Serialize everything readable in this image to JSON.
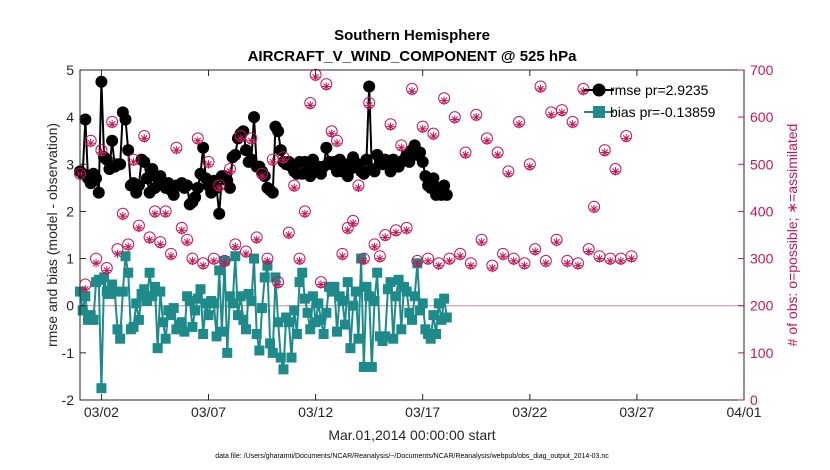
{
  "chart_data": {
    "type": "line",
    "title": "Southern Hemisphere",
    "subtitle": "AIRCRAFT_V_WIND_COMPONENT @ 525 hPa",
    "xlabel": "Mar.01,2014 00:00:00 start",
    "ylabel": "rmse and bias (model - observation)",
    "ylabel_right": "# of obs: o=possible; ∗=assimilated",
    "footnote": "data file: /Users/gharamti/Documents/NCAR/Reanalysis/~/Documents/NCAR/Reanalysis/webpub/obs_diag_output_2014-03.nc",
    "xlim": [
      1,
      32
    ],
    "ylim": [
      -2,
      5
    ],
    "ylim_right": [
      0,
      700
    ],
    "x_ticks": [
      {
        "x": 2,
        "label": "03/02"
      },
      {
        "x": 7,
        "label": "03/07"
      },
      {
        "x": 12,
        "label": "03/12"
      },
      {
        "x": 17,
        "label": "03/17"
      },
      {
        "x": 22,
        "label": "03/22"
      },
      {
        "x": 27,
        "label": "03/27"
      },
      {
        "x": 32,
        "label": "04/01"
      }
    ],
    "y_ticks": [
      "-2",
      "-1",
      "0",
      "1",
      "2",
      "3",
      "4",
      "5"
    ],
    "y_ticks_right": [
      "0",
      "100",
      "200",
      "300",
      "400",
      "500",
      "600",
      "700"
    ],
    "legend": {
      "position": "top-right",
      "entries": [
        "rmse pr=2.9235",
        "bias pr=-0.13859"
      ]
    },
    "colors": {
      "rmse": "#000000",
      "bias": "#1f8a8a",
      "obs": "#c2185b",
      "zero": "#d9a0a0"
    },
    "series": [
      {
        "name": "rmse pr=2.9235",
        "axis": "left",
        "x_start": 1,
        "x_step": 0.125,
        "values": [
          2.85,
          2.8,
          3.95,
          2.7,
          2.6,
          2.8,
          2.7,
          2.4,
          4.75,
          3.15,
          3.1,
          2.9,
          3.5,
          2.95,
          3.0,
          3.0,
          4.1,
          3.95,
          3.3,
          2.55,
          2.6,
          2.4,
          2.55,
          3.1,
          3.05,
          2.7,
          2.4,
          2.9,
          2.5,
          2.7,
          2.75,
          2.6,
          2.5,
          2.6,
          2.45,
          2.35,
          2.55,
          2.55,
          2.6,
          2.5,
          2.55,
          2.15,
          2.2,
          2.3,
          2.5,
          2.8,
          3.35,
          2.7,
          2.55,
          2.4,
          2.65,
          2.5,
          1.95,
          2.75,
          2.75,
          2.65,
          2.5,
          3.15,
          3.2,
          3.55,
          3.65,
          3.7,
          3.3,
          3.05,
          3.1,
          4.0,
          2.95,
          2.95,
          2.85,
          2.75,
          2.5,
          2.45,
          2.4,
          3.8,
          3.7,
          3.3,
          3.05,
          3.0,
          3.05,
          2.95,
          2.85,
          2.8,
          3.05,
          2.8,
          3.05,
          2.85,
          2.75,
          3.1,
          2.95,
          2.95,
          2.8,
          2.95,
          3.35,
          3.05,
          3.0,
          3.05,
          2.85,
          3.1,
          2.85,
          3.0,
          2.75,
          2.9,
          3.15,
          3.0,
          3.0,
          2.85,
          2.8,
          3.1,
          4.65,
          2.9,
          2.85,
          3.2,
          3.05,
          3.0,
          3.1,
          3.0,
          2.85,
          3.1,
          3.0,
          2.95,
          3.05,
          3.1,
          3.2,
          3.05,
          3.3,
          3.4,
          3.2,
          3.25,
          3.05,
          2.75,
          2.55,
          2.5,
          2.7,
          2.35,
          2.5,
          2.35,
          2.55,
          2.35
        ]
      },
      {
        "name": "bias pr=-0.13859",
        "axis": "left",
        "x_start": 1,
        "x_step": 0.125,
        "values": [
          0.3,
          -0.1,
          0.2,
          -0.3,
          -0.2,
          -0.3,
          0.5,
          0.55,
          -1.75,
          0.6,
          0.3,
          0.25,
          0.45,
          0.3,
          -0.5,
          -0.7,
          0.3,
          1.05,
          0.7,
          -0.5,
          -0.45,
          0.05,
          -0.3,
          0.25,
          0.35,
          0.1,
          0.7,
          0.2,
          0.4,
          -0.9,
          0.3,
          -0.35,
          -0.7,
          -0.1,
          -0.2,
          -0.05,
          -0.5,
          -0.4,
          -0.35,
          -0.55,
          0.2,
          0.1,
          -0.45,
          -0.1,
          0.15,
          0.35,
          -0.6,
          0.05,
          -0.2,
          0.1,
          0.05,
          -0.65,
          0.75,
          -0.55,
          0.95,
          -1.0,
          0.2,
          0.05,
          1.05,
          -0.2,
          0.2,
          -0.3,
          -0.5,
          0.25,
          0.1,
          1.0,
          -0.6,
          -0.95,
          -0.05,
          0.6,
          0.85,
          -0.8,
          -1.0,
          0.6,
          -0.35,
          -1.1,
          -1.35,
          -0.25,
          -0.35,
          -1.1,
          -0.1,
          -0.6,
          0.5,
          0.7,
          0.15,
          -0.15,
          -0.5,
          0.2,
          -0.35,
          0.05,
          -0.3,
          -0.6,
          -0.15,
          0.4,
          0.3,
          0.4,
          -0.55,
          0.2,
          0.1,
          -0.4,
          0.5,
          -0.9,
          0.0,
          0.3,
          -0.7,
          1.0,
          -1.3,
          0.4,
          0.2,
          -1.3,
          0.1,
          0.7,
          -0.65,
          -0.75,
          -0.65,
          0.35,
          0.5,
          -0.7,
          0.2,
          0.55,
          -0.5,
          0.4,
          0.3,
          -0.15,
          -0.3,
          0.2,
          0.9,
          -0.1,
          0.05,
          -0.5,
          -0.6,
          -0.7,
          -0.2,
          -0.6,
          0.05,
          -0.3,
          0.15,
          -0.25
        ]
      },
      {
        "name": "possible",
        "axis": "right",
        "x_start": 1,
        "x_step": 0.25,
        "values": [
          480,
          245,
          550,
          300,
          530,
          280,
          590,
          320,
          395,
          330,
          510,
          370,
          560,
          345,
          400,
          335,
          400,
          310,
          535,
          365,
          340,
          300,
          555,
          290,
          505,
          300,
          455,
          295,
          490,
          330,
          560,
          315,
          555,
          345,
          480,
          300,
          510,
          250,
          515,
          355,
          455,
          300,
          400,
          630,
          690,
          250,
          670,
          570,
          550,
          310,
          365,
          380,
          455,
          300,
          630,
          330,
          305,
          350,
          585,
          360,
          540,
          365,
          660,
          295,
          580,
          300,
          565,
          290,
          640,
          300,
          600,
          310,
          525,
          290,
          605,
          340,
          555,
          285,
          525,
          310,
          485,
          300,
          590,
          290,
          500,
          320,
          665,
          295,
          610,
          340,
          615,
          295,
          590,
          290,
          660,
          320,
          410,
          305,
          530,
          300,
          490,
          300,
          560,
          305
        ]
      },
      {
        "name": "assimilated",
        "axis": "right",
        "x_start": 1,
        "x_step": 0.25,
        "values": [
          480,
          235,
          545,
          290,
          525,
          275,
          585,
          310,
          390,
          325,
          505,
          365,
          555,
          340,
          395,
          330,
          395,
          305,
          530,
          360,
          335,
          295,
          550,
          285,
          500,
          295,
          450,
          290,
          485,
          325,
          555,
          310,
          550,
          340,
          475,
          295,
          505,
          245,
          510,
          350,
          450,
          295,
          395,
          625,
          685,
          245,
          665,
          565,
          545,
          305,
          360,
          375,
          450,
          295,
          625,
          325,
          300,
          345,
          580,
          355,
          535,
          360,
          655,
          290,
          575,
          295,
          560,
          285,
          635,
          295,
          595,
          305,
          520,
          285,
          600,
          335,
          550,
          280,
          520,
          305,
          480,
          295,
          585,
          285,
          495,
          315,
          660,
          290,
          605,
          335,
          610,
          290,
          585,
          285,
          655,
          315,
          405,
          300,
          525,
          295,
          485,
          295,
          555,
          300
        ]
      }
    ]
  }
}
